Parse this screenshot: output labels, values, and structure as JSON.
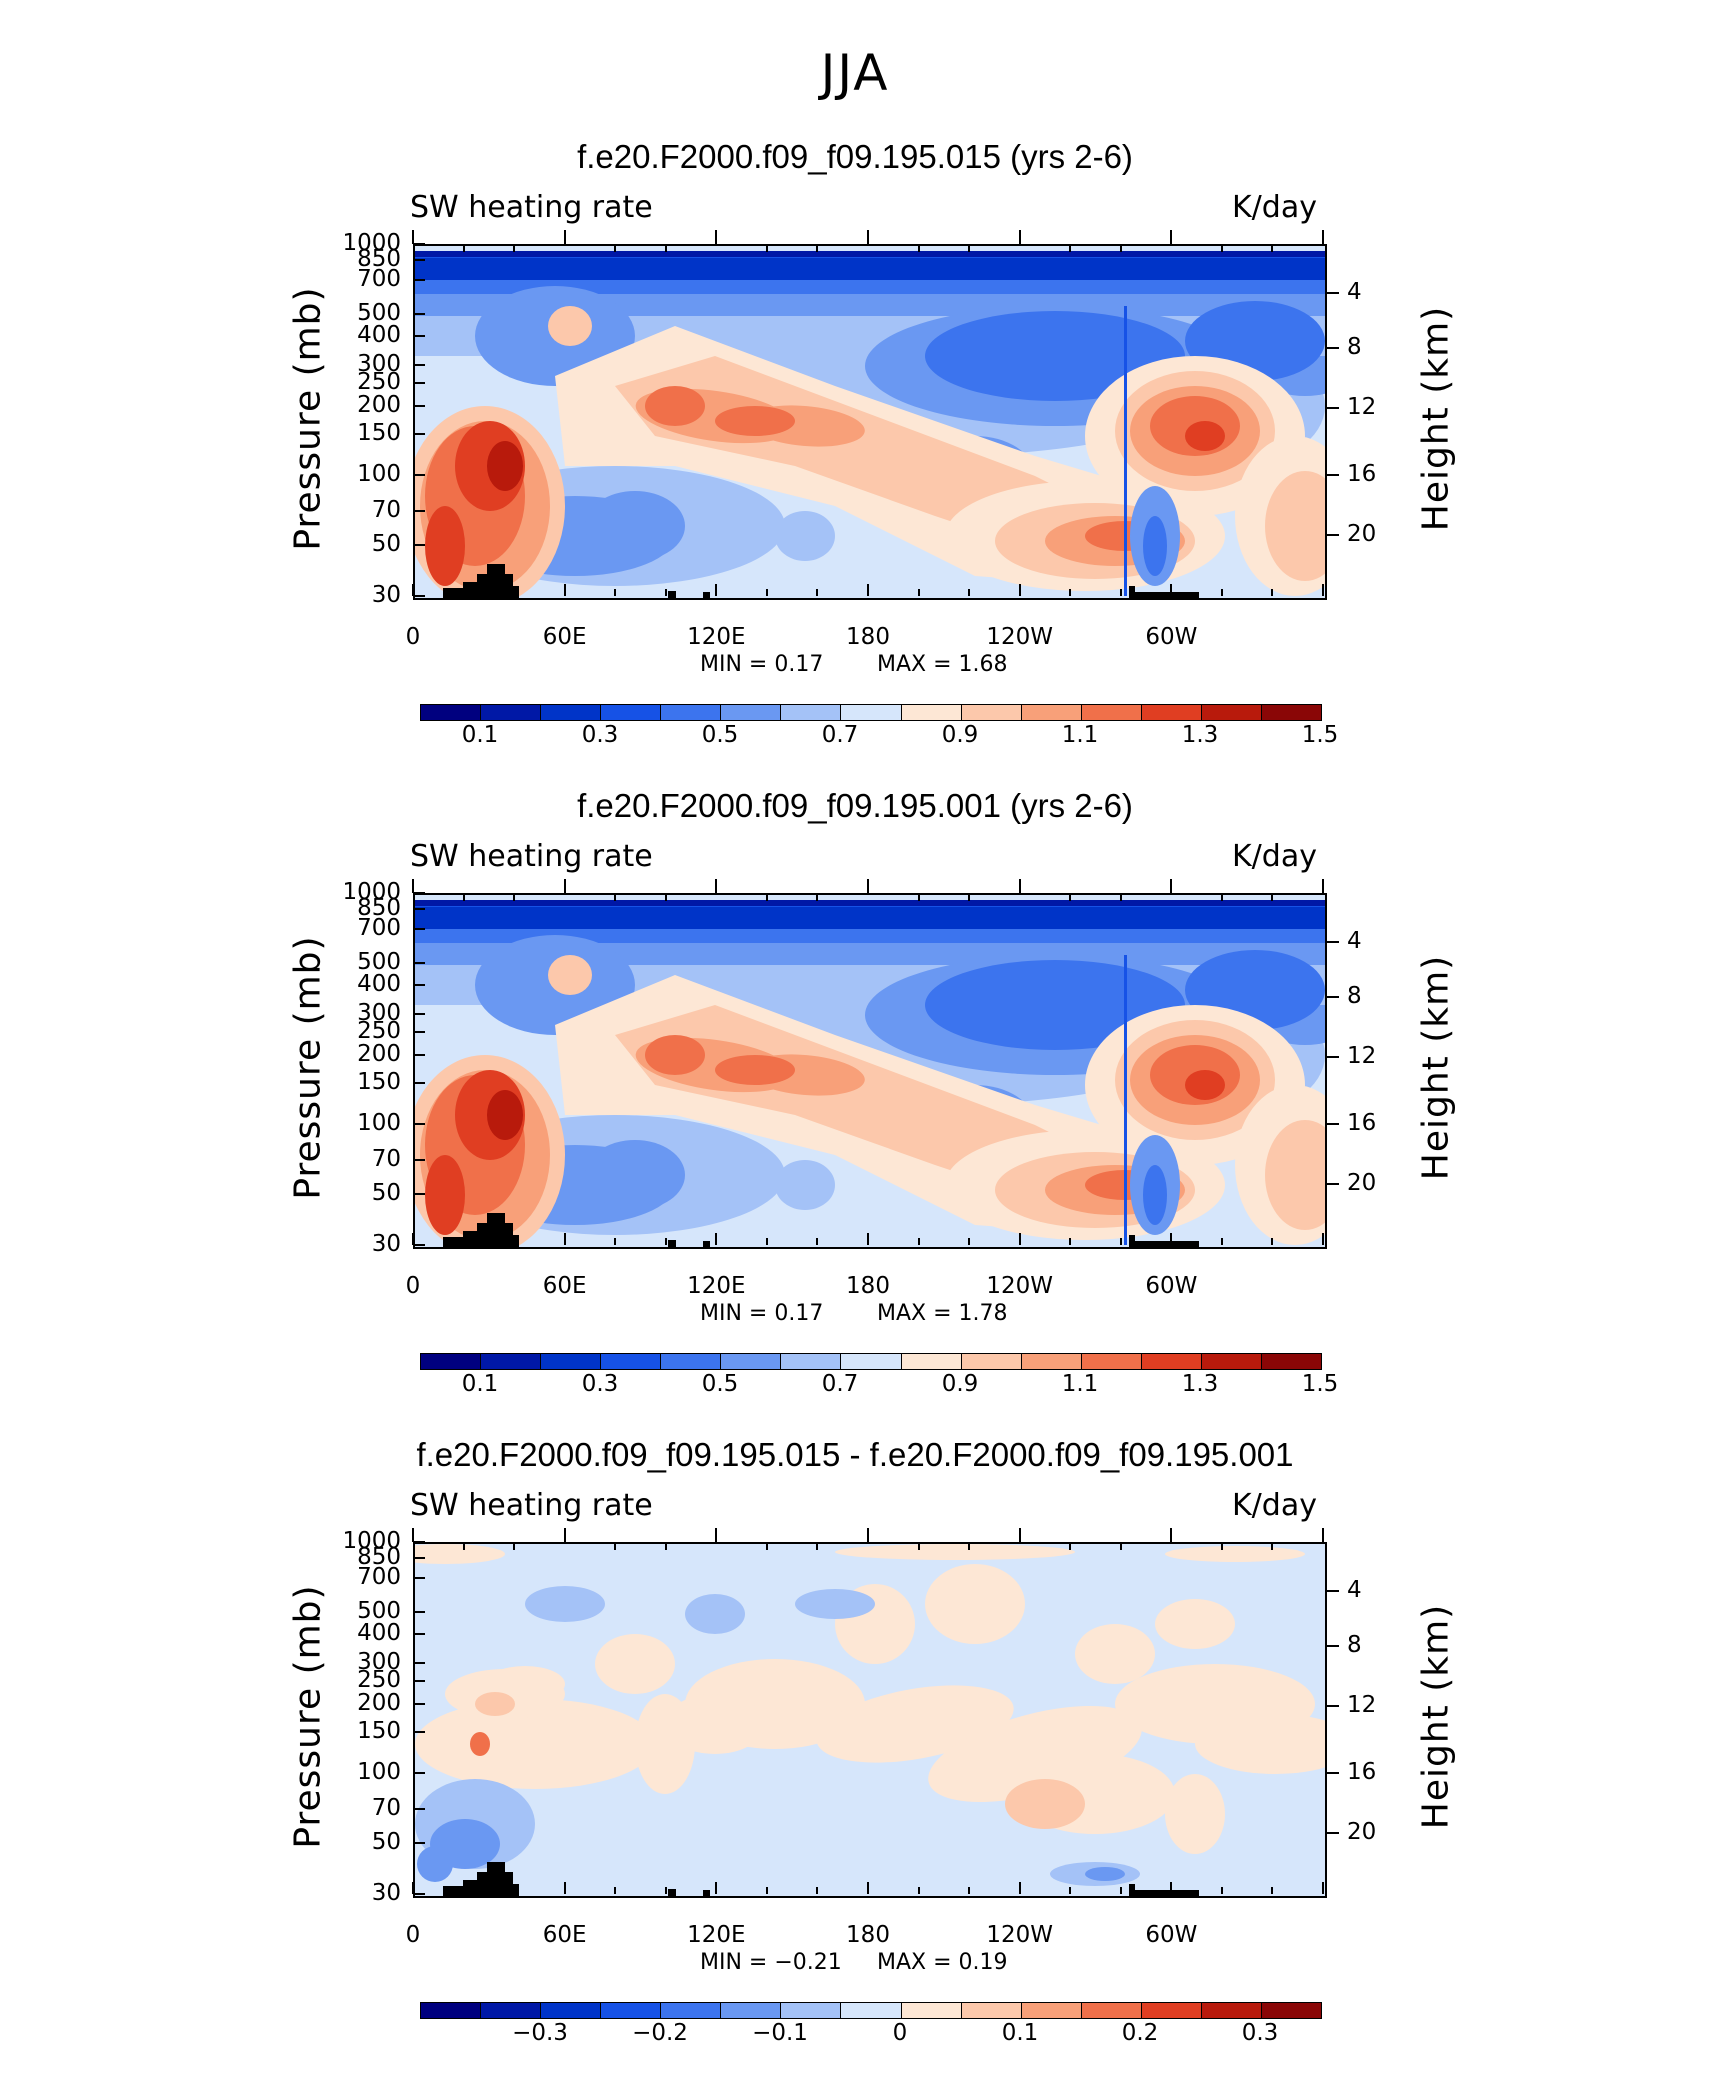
{
  "figure": {
    "title": "JJA"
  },
  "panels": [
    {
      "title": "f.e20.F2000.f09_f09.195.015 (yrs 2-6)",
      "left_label": "SW heating rate",
      "right_label": "K/day",
      "min_text": "MIN = 0.17",
      "max_text": "MAX = 1.68",
      "cbar_labels": [
        "0.1",
        "0.3",
        "0.5",
        "0.7",
        "0.9",
        "1.1",
        "1.3",
        "1.5"
      ],
      "kind": "field"
    },
    {
      "title": "f.e20.F2000.f09_f09.195.001 (yrs 2-6)",
      "left_label": "SW heating rate",
      "right_label": "K/day",
      "min_text": "MIN = 0.17",
      "max_text": "MAX = 1.78",
      "cbar_labels": [
        "0.1",
        "0.3",
        "0.5",
        "0.7",
        "0.9",
        "1.1",
        "1.3",
        "1.5"
      ],
      "kind": "field"
    },
    {
      "title": "f.e20.F2000.f09_f09.195.015 - f.e20.F2000.f09_f09.195.001",
      "left_label": "SW heating rate",
      "right_label": "K/day",
      "min_text": "MIN = −0.21",
      "max_text": "MAX = 0.19",
      "cbar_labels": [
        "−0.3",
        "−0.2",
        "−0.1",
        "0",
        "0.1",
        "0.2",
        "0.3"
      ],
      "kind": "diff"
    }
  ],
  "axes": {
    "ylabel_left": "Pressure (mb)",
    "ylabel_right": "Height (km)",
    "pressure_ticks": [
      "30",
      "50",
      "70",
      "100",
      "150",
      "200",
      "250",
      "300",
      "400",
      "500",
      "700",
      "850",
      "1000"
    ],
    "height_ticks": [
      "20",
      "16",
      "12",
      "8",
      "4"
    ],
    "lon_ticks": [
      "0",
      "60E",
      "120E",
      "180",
      "120W",
      "60W"
    ]
  },
  "colors": {
    "field_scale": [
      "#00007f",
      "#0018a6",
      "#0034c8",
      "#1652e6",
      "#3c74ee",
      "#6a98f2",
      "#a4c2f7",
      "#d6e6fb",
      "#fde7d5",
      "#fcc8ab",
      "#f8a079",
      "#f0704a",
      "#e03e22",
      "#b81a0c",
      "#8a0606"
    ],
    "diff_scale": [
      "#00007f",
      "#0018a6",
      "#0034c8",
      "#1652e6",
      "#3c74ee",
      "#6a98f2",
      "#a4c2f7",
      "#d6e6fb",
      "#fde7d5",
      "#fcc8ab",
      "#f8a079",
      "#f0704a",
      "#e03e22",
      "#b81a0c",
      "#8a0606"
    ]
  },
  "chart_data": [
    {
      "type": "heatmap",
      "title": "f.e20.F2000.f09_f09.195.015 (yrs 2-6)",
      "x": "longitude",
      "y": "pressure (mb)",
      "ylim": [
        1000,
        30
      ],
      "units": "K/day",
      "min": 0.17,
      "max": 1.68,
      "levels": [
        0.1,
        0.2,
        0.3,
        0.4,
        0.5,
        0.6,
        0.7,
        0.8,
        0.9,
        1.0,
        1.1,
        1.2,
        1.3,
        1.4,
        1.5
      ]
    },
    {
      "type": "heatmap",
      "title": "f.e20.F2000.f09_f09.195.001 (yrs 2-6)",
      "x": "longitude",
      "y": "pressure (mb)",
      "ylim": [
        1000,
        30
      ],
      "units": "K/day",
      "min": 0.17,
      "max": 1.78,
      "levels": [
        0.1,
        0.2,
        0.3,
        0.4,
        0.5,
        0.6,
        0.7,
        0.8,
        0.9,
        1.0,
        1.1,
        1.2,
        1.3,
        1.4,
        1.5
      ]
    },
    {
      "type": "heatmap",
      "title": "f.e20.F2000.f09_f09.195.015 - f.e20.F2000.f09_f09.195.001",
      "x": "longitude",
      "y": "pressure (mb)",
      "ylim": [
        1000,
        30
      ],
      "units": "K/day",
      "min": -0.21,
      "max": 0.19,
      "levels": [
        -0.35,
        -0.3,
        -0.25,
        -0.2,
        -0.15,
        -0.1,
        -0.05,
        0,
        0.05,
        0.1,
        0.15,
        0.2,
        0.25,
        0.3,
        0.35
      ]
    }
  ]
}
